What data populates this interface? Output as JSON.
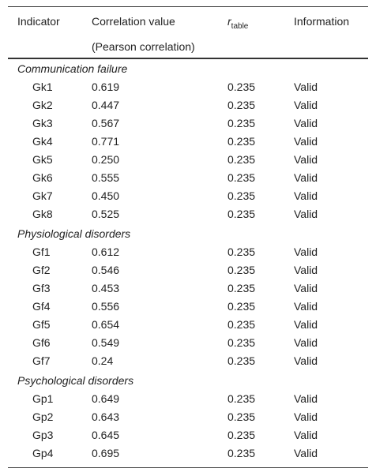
{
  "table": {
    "header": [
      "Indicator",
      {
        "line1": "Correlation value",
        "line2": "(Pearson correlation)"
      },
      {
        "symbol": "r",
        "subscript": "table"
      },
      "Information"
    ],
    "groups": [
      {
        "name": "Communication failure",
        "rows": [
          [
            "Gk1",
            "0.619",
            "0.235",
            "Valid"
          ],
          [
            "Gk2",
            "0.447",
            "0.235",
            "Valid"
          ],
          [
            "Gk3",
            "0.567",
            "0.235",
            "Valid"
          ],
          [
            "Gk4",
            "0.771",
            "0.235",
            "Valid"
          ],
          [
            "Gk5",
            "0.250",
            "0.235",
            "Valid"
          ],
          [
            "Gk6",
            "0.555",
            "0.235",
            "Valid"
          ],
          [
            "Gk7",
            "0.450",
            "0.235",
            "Valid"
          ],
          [
            "Gk8",
            "0.525",
            "0.235",
            "Valid"
          ]
        ]
      },
      {
        "name": "Physiological disorders",
        "rows": [
          [
            "Gf1",
            "0.612",
            "0.235",
            "Valid"
          ],
          [
            "Gf2",
            "0.546",
            "0.235",
            "Valid"
          ],
          [
            "Gf3",
            "0.453",
            "0.235",
            "Valid"
          ],
          [
            "Gf4",
            "0.556",
            "0.235",
            "Valid"
          ],
          [
            "Gf5",
            "0.654",
            "0.235",
            "Valid"
          ],
          [
            "Gf6",
            "0.549",
            "0.235",
            "Valid"
          ],
          [
            "Gf7",
            "0.24",
            "0.235",
            "Valid"
          ]
        ]
      },
      {
        "name": "Psychological disorders",
        "rows": [
          [
            "Gp1",
            "0.649",
            "0.235",
            "Valid"
          ],
          [
            "Gp2",
            "0.643",
            "0.235",
            "Valid"
          ],
          [
            "Gp3",
            "0.645",
            "0.235",
            "Valid"
          ],
          [
            "Gp4",
            "0.695",
            "0.235",
            "Valid"
          ]
        ]
      }
    ]
  }
}
